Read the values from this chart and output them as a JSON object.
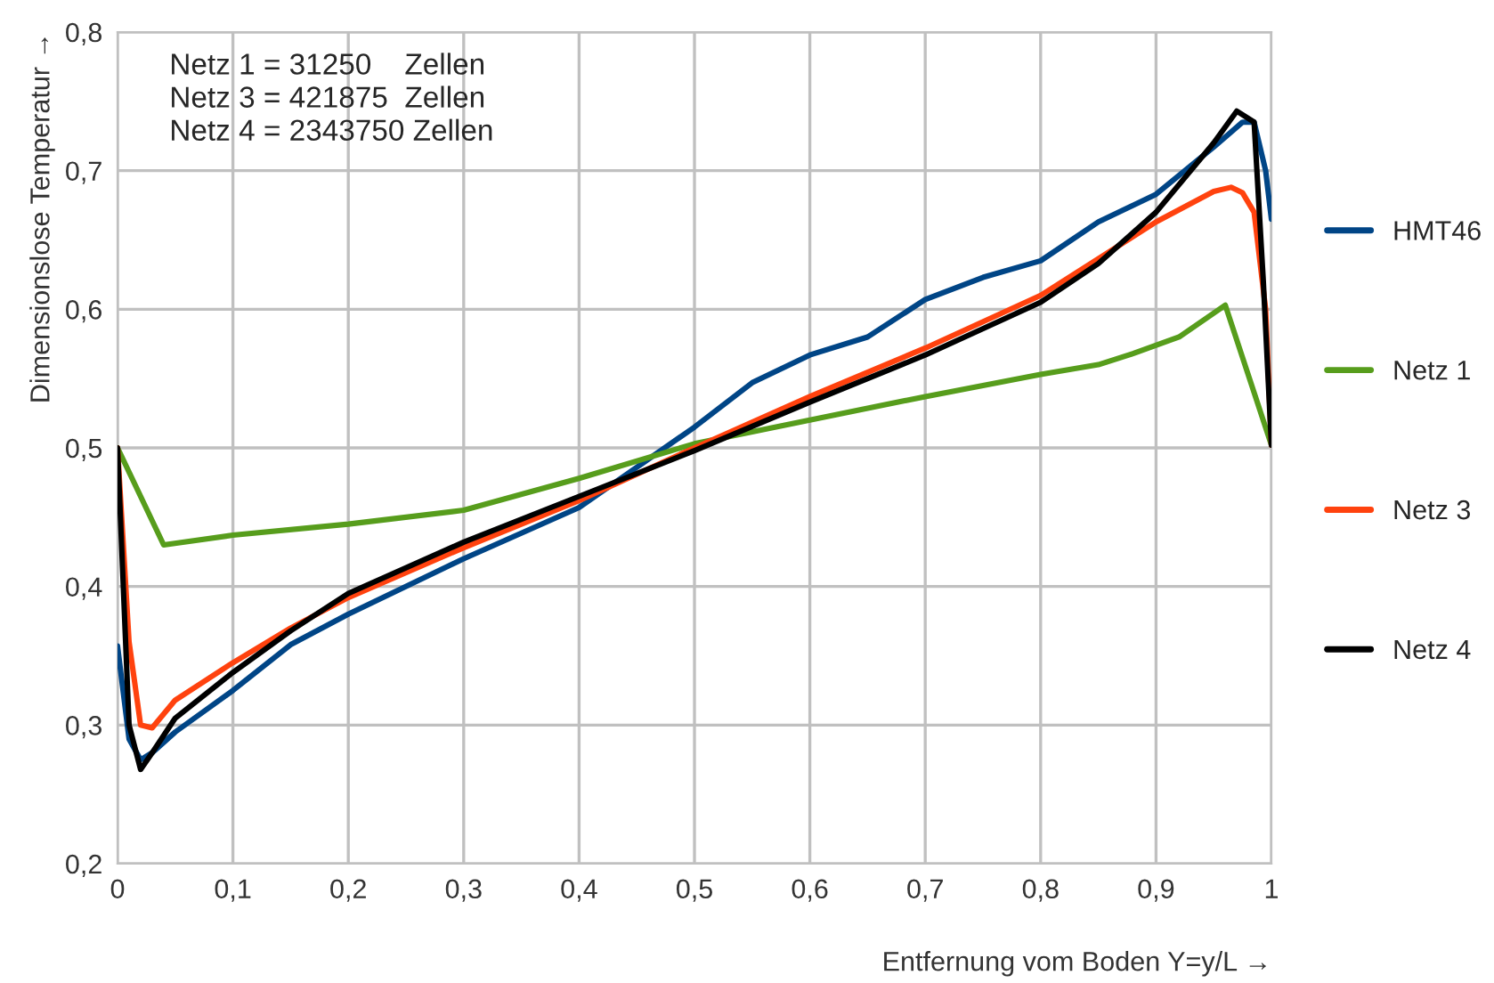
{
  "chart_data": {
    "type": "line",
    "xlabel": "Entfernung vom Boden Y=y/L →",
    "ylabel": "Dimensionslose Temperatur →",
    "annotations": [
      "Netz 1 = 31250    Zellen\nNetz 3 = 421875  Zellen\nNetz 4 = 2343750 Zellen"
    ],
    "xlim": [
      0,
      1
    ],
    "ylim": [
      0.2,
      0.8
    ],
    "xticks": [
      {
        "value": 0,
        "label": "0"
      },
      {
        "value": 0.1,
        "label": "0,1"
      },
      {
        "value": 0.2,
        "label": "0,2"
      },
      {
        "value": 0.3,
        "label": "0,3"
      },
      {
        "value": 0.4,
        "label": "0,4"
      },
      {
        "value": 0.5,
        "label": "0,5"
      },
      {
        "value": 0.6,
        "label": "0,6"
      },
      {
        "value": 0.7,
        "label": "0,7"
      },
      {
        "value": 0.8,
        "label": "0,8"
      },
      {
        "value": 0.9,
        "label": "0,9"
      },
      {
        "value": 1,
        "label": "1"
      }
    ],
    "yticks": [
      {
        "value": 0.2,
        "label": "0,2"
      },
      {
        "value": 0.3,
        "label": "0,3"
      },
      {
        "value": 0.4,
        "label": "0,4"
      },
      {
        "value": 0.5,
        "label": "0,5"
      },
      {
        "value": 0.6,
        "label": "0,6"
      },
      {
        "value": 0.7,
        "label": "0,7"
      },
      {
        "value": 0.8,
        "label": "0,8"
      }
    ],
    "grid": true,
    "legend": "right",
    "marker": "none",
    "line_style": "solid",
    "series": [
      {
        "name": "HMT46",
        "color": "#004586",
        "x": [
          0,
          0.01,
          0.02,
          0.03,
          0.05,
          0.1,
          0.15,
          0.2,
          0.3,
          0.4,
          0.5,
          0.55,
          0.6,
          0.65,
          0.7,
          0.75,
          0.8,
          0.85,
          0.9,
          0.95,
          0.975,
          0.985,
          0.995,
          1.0
        ],
        "values": [
          0.357,
          0.29,
          0.275,
          0.28,
          0.295,
          0.325,
          0.358,
          0.38,
          0.42,
          0.457,
          0.515,
          0.547,
          0.567,
          0.58,
          0.607,
          0.623,
          0.635,
          0.663,
          0.683,
          0.717,
          0.735,
          0.735,
          0.7,
          0.665
        ]
      },
      {
        "name": "Netz 1",
        "color": "#579d1c",
        "x": [
          0,
          0.04,
          0.1,
          0.2,
          0.3,
          0.4,
          0.5,
          0.6,
          0.7,
          0.8,
          0.85,
          0.88,
          0.92,
          0.96,
          1.0
        ],
        "values": [
          0.5,
          0.43,
          0.437,
          0.445,
          0.455,
          0.478,
          0.503,
          0.52,
          0.537,
          0.553,
          0.56,
          0.568,
          0.58,
          0.603,
          0.502
        ]
      },
      {
        "name": "Netz 3",
        "color": "#ff420e",
        "x": [
          0,
          0.005,
          0.01,
          0.02,
          0.03,
          0.05,
          0.1,
          0.15,
          0.2,
          0.3,
          0.4,
          0.5,
          0.6,
          0.7,
          0.8,
          0.9,
          0.95,
          0.965,
          0.975,
          0.985,
          0.995,
          1.0
        ],
        "values": [
          0.5,
          0.43,
          0.36,
          0.3,
          0.298,
          0.318,
          0.345,
          0.37,
          0.392,
          0.428,
          0.462,
          0.5,
          0.537,
          0.572,
          0.61,
          0.663,
          0.685,
          0.688,
          0.684,
          0.67,
          0.6,
          0.502
        ]
      },
      {
        "name": "Netz 4",
        "color": "#000000",
        "x": [
          0,
          0.005,
          0.01,
          0.02,
          0.03,
          0.05,
          0.1,
          0.15,
          0.2,
          0.3,
          0.4,
          0.5,
          0.6,
          0.7,
          0.8,
          0.85,
          0.9,
          0.95,
          0.97,
          0.985,
          0.993,
          1.0
        ],
        "values": [
          0.5,
          0.4,
          0.3,
          0.268,
          0.28,
          0.305,
          0.338,
          0.368,
          0.395,
          0.432,
          0.465,
          0.498,
          0.533,
          0.567,
          0.605,
          0.633,
          0.67,
          0.72,
          0.743,
          0.735,
          0.62,
          0.502
        ]
      }
    ]
  }
}
